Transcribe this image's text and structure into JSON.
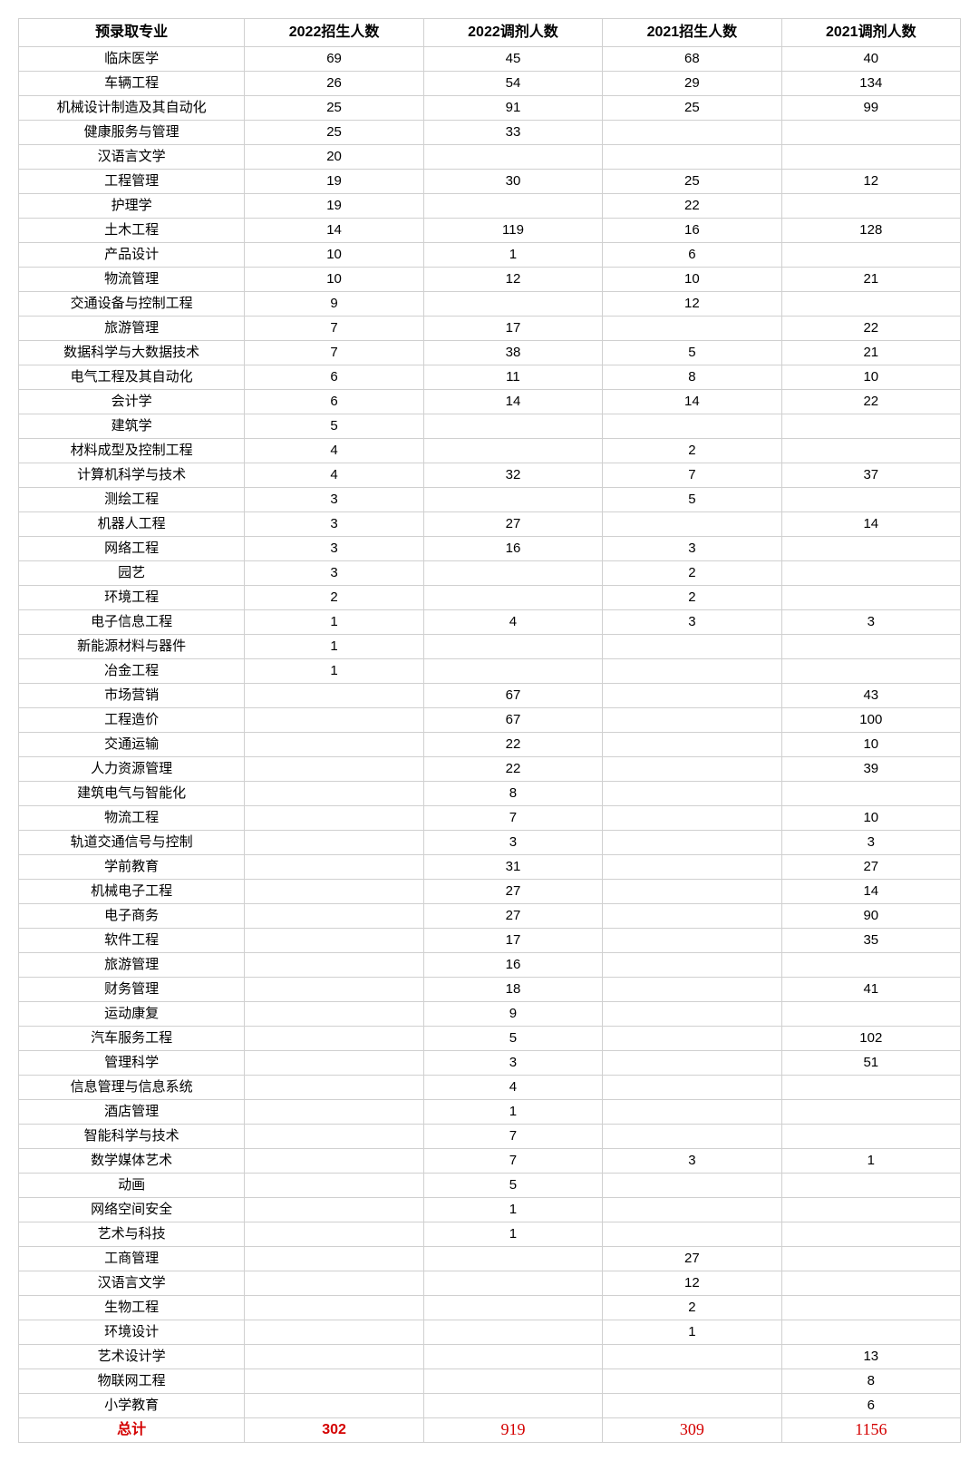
{
  "table": {
    "type": "table",
    "background_color": "#ffffff",
    "border_color": "#d0d0d0",
    "text_color": "#000000",
    "header_fontsize": 16,
    "body_fontsize": 15,
    "total_color": "#d40000",
    "columns": [
      {
        "key": "major",
        "label": "预录取专业",
        "width": "24%",
        "align": "center"
      },
      {
        "key": "enroll2022",
        "label": "2022招生人数",
        "width": "19%",
        "align": "center"
      },
      {
        "key": "adjust2022",
        "label": "2022调剂人数",
        "width": "19%",
        "align": "center"
      },
      {
        "key": "enroll2021",
        "label": "2021招生人数",
        "width": "19%",
        "align": "center"
      },
      {
        "key": "adjust2021",
        "label": "2021调剂人数",
        "width": "19%",
        "align": "center"
      }
    ],
    "rows": [
      [
        "临床医学",
        "69",
        "45",
        "68",
        "40"
      ],
      [
        "车辆工程",
        "26",
        "54",
        "29",
        "134"
      ],
      [
        "机械设计制造及其自动化",
        "25",
        "91",
        "25",
        "99"
      ],
      [
        "健康服务与管理",
        "25",
        "33",
        "",
        ""
      ],
      [
        "汉语言文学",
        "20",
        "",
        "",
        ""
      ],
      [
        "工程管理",
        "19",
        "30",
        "25",
        "12"
      ],
      [
        "护理学",
        "19",
        "",
        "22",
        ""
      ],
      [
        "土木工程",
        "14",
        "119",
        "16",
        "128"
      ],
      [
        "产品设计",
        "10",
        "1",
        "6",
        ""
      ],
      [
        "物流管理",
        "10",
        "12",
        "10",
        "21"
      ],
      [
        "交通设备与控制工程",
        "9",
        "",
        "12",
        ""
      ],
      [
        "旅游管理",
        "7",
        "17",
        "",
        "22"
      ],
      [
        "数据科学与大数据技术",
        "7",
        "38",
        "5",
        "21"
      ],
      [
        "电气工程及其自动化",
        "6",
        "11",
        "8",
        "10"
      ],
      [
        "会计学",
        "6",
        "14",
        "14",
        "22"
      ],
      [
        "建筑学",
        "5",
        "",
        "",
        ""
      ],
      [
        "材料成型及控制工程",
        "4",
        "",
        "2",
        ""
      ],
      [
        "计算机科学与技术",
        "4",
        "32",
        "7",
        "37"
      ],
      [
        "测绘工程",
        "3",
        "",
        "5",
        ""
      ],
      [
        "机器人工程",
        "3",
        "27",
        "",
        "14"
      ],
      [
        "网络工程",
        "3",
        "16",
        "3",
        ""
      ],
      [
        "园艺",
        "3",
        "",
        "2",
        ""
      ],
      [
        "环境工程",
        "2",
        "",
        "2",
        ""
      ],
      [
        "电子信息工程",
        "1",
        "4",
        "3",
        "3"
      ],
      [
        "新能源材料与器件",
        "1",
        "",
        "",
        ""
      ],
      [
        "冶金工程",
        "1",
        "",
        "",
        ""
      ],
      [
        "市场营销",
        "",
        "67",
        "",
        "43"
      ],
      [
        "工程造价",
        "",
        "67",
        "",
        "100"
      ],
      [
        "交通运输",
        "",
        "22",
        "",
        "10"
      ],
      [
        "人力资源管理",
        "",
        "22",
        "",
        "39"
      ],
      [
        "建筑电气与智能化",
        "",
        "8",
        "",
        ""
      ],
      [
        "物流工程",
        "",
        "7",
        "",
        "10"
      ],
      [
        "轨道交通信号与控制",
        "",
        "3",
        "",
        "3"
      ],
      [
        "学前教育",
        "",
        "31",
        "",
        "27"
      ],
      [
        "机械电子工程",
        "",
        "27",
        "",
        "14"
      ],
      [
        "电子商务",
        "",
        "27",
        "",
        "90"
      ],
      [
        "软件工程",
        "",
        "17",
        "",
        "35"
      ],
      [
        "旅游管理",
        "",
        "16",
        "",
        ""
      ],
      [
        "财务管理",
        "",
        "18",
        "",
        "41"
      ],
      [
        "运动康复",
        "",
        "9",
        "",
        ""
      ],
      [
        "汽车服务工程",
        "",
        "5",
        "",
        "102"
      ],
      [
        "管理科学",
        "",
        "3",
        "",
        "51"
      ],
      [
        "信息管理与信息系统",
        "",
        "4",
        "",
        ""
      ],
      [
        "酒店管理",
        "",
        "1",
        "",
        ""
      ],
      [
        "智能科学与技术",
        "",
        "7",
        "",
        ""
      ],
      [
        "数学媒体艺术",
        "",
        "7",
        "3",
        "1"
      ],
      [
        "动画",
        "",
        "5",
        "",
        ""
      ],
      [
        "网络空间安全",
        "",
        "1",
        "",
        ""
      ],
      [
        "艺术与科技",
        "",
        "1",
        "",
        ""
      ],
      [
        "工商管理",
        "",
        "",
        "27",
        ""
      ],
      [
        "汉语言文学",
        "",
        "",
        "12",
        ""
      ],
      [
        "生物工程",
        "",
        "",
        "2",
        ""
      ],
      [
        "环境设计",
        "",
        "",
        "1",
        ""
      ],
      [
        "艺术设计学",
        "",
        "",
        "",
        "13"
      ],
      [
        "物联网工程",
        "",
        "",
        "",
        "8"
      ],
      [
        "小学教育",
        "",
        "",
        "",
        "6"
      ]
    ],
    "total": {
      "label": "总计",
      "enroll2022": "302",
      "adjust2022": "919",
      "enroll2021": "309",
      "adjust2021": "1156"
    }
  }
}
